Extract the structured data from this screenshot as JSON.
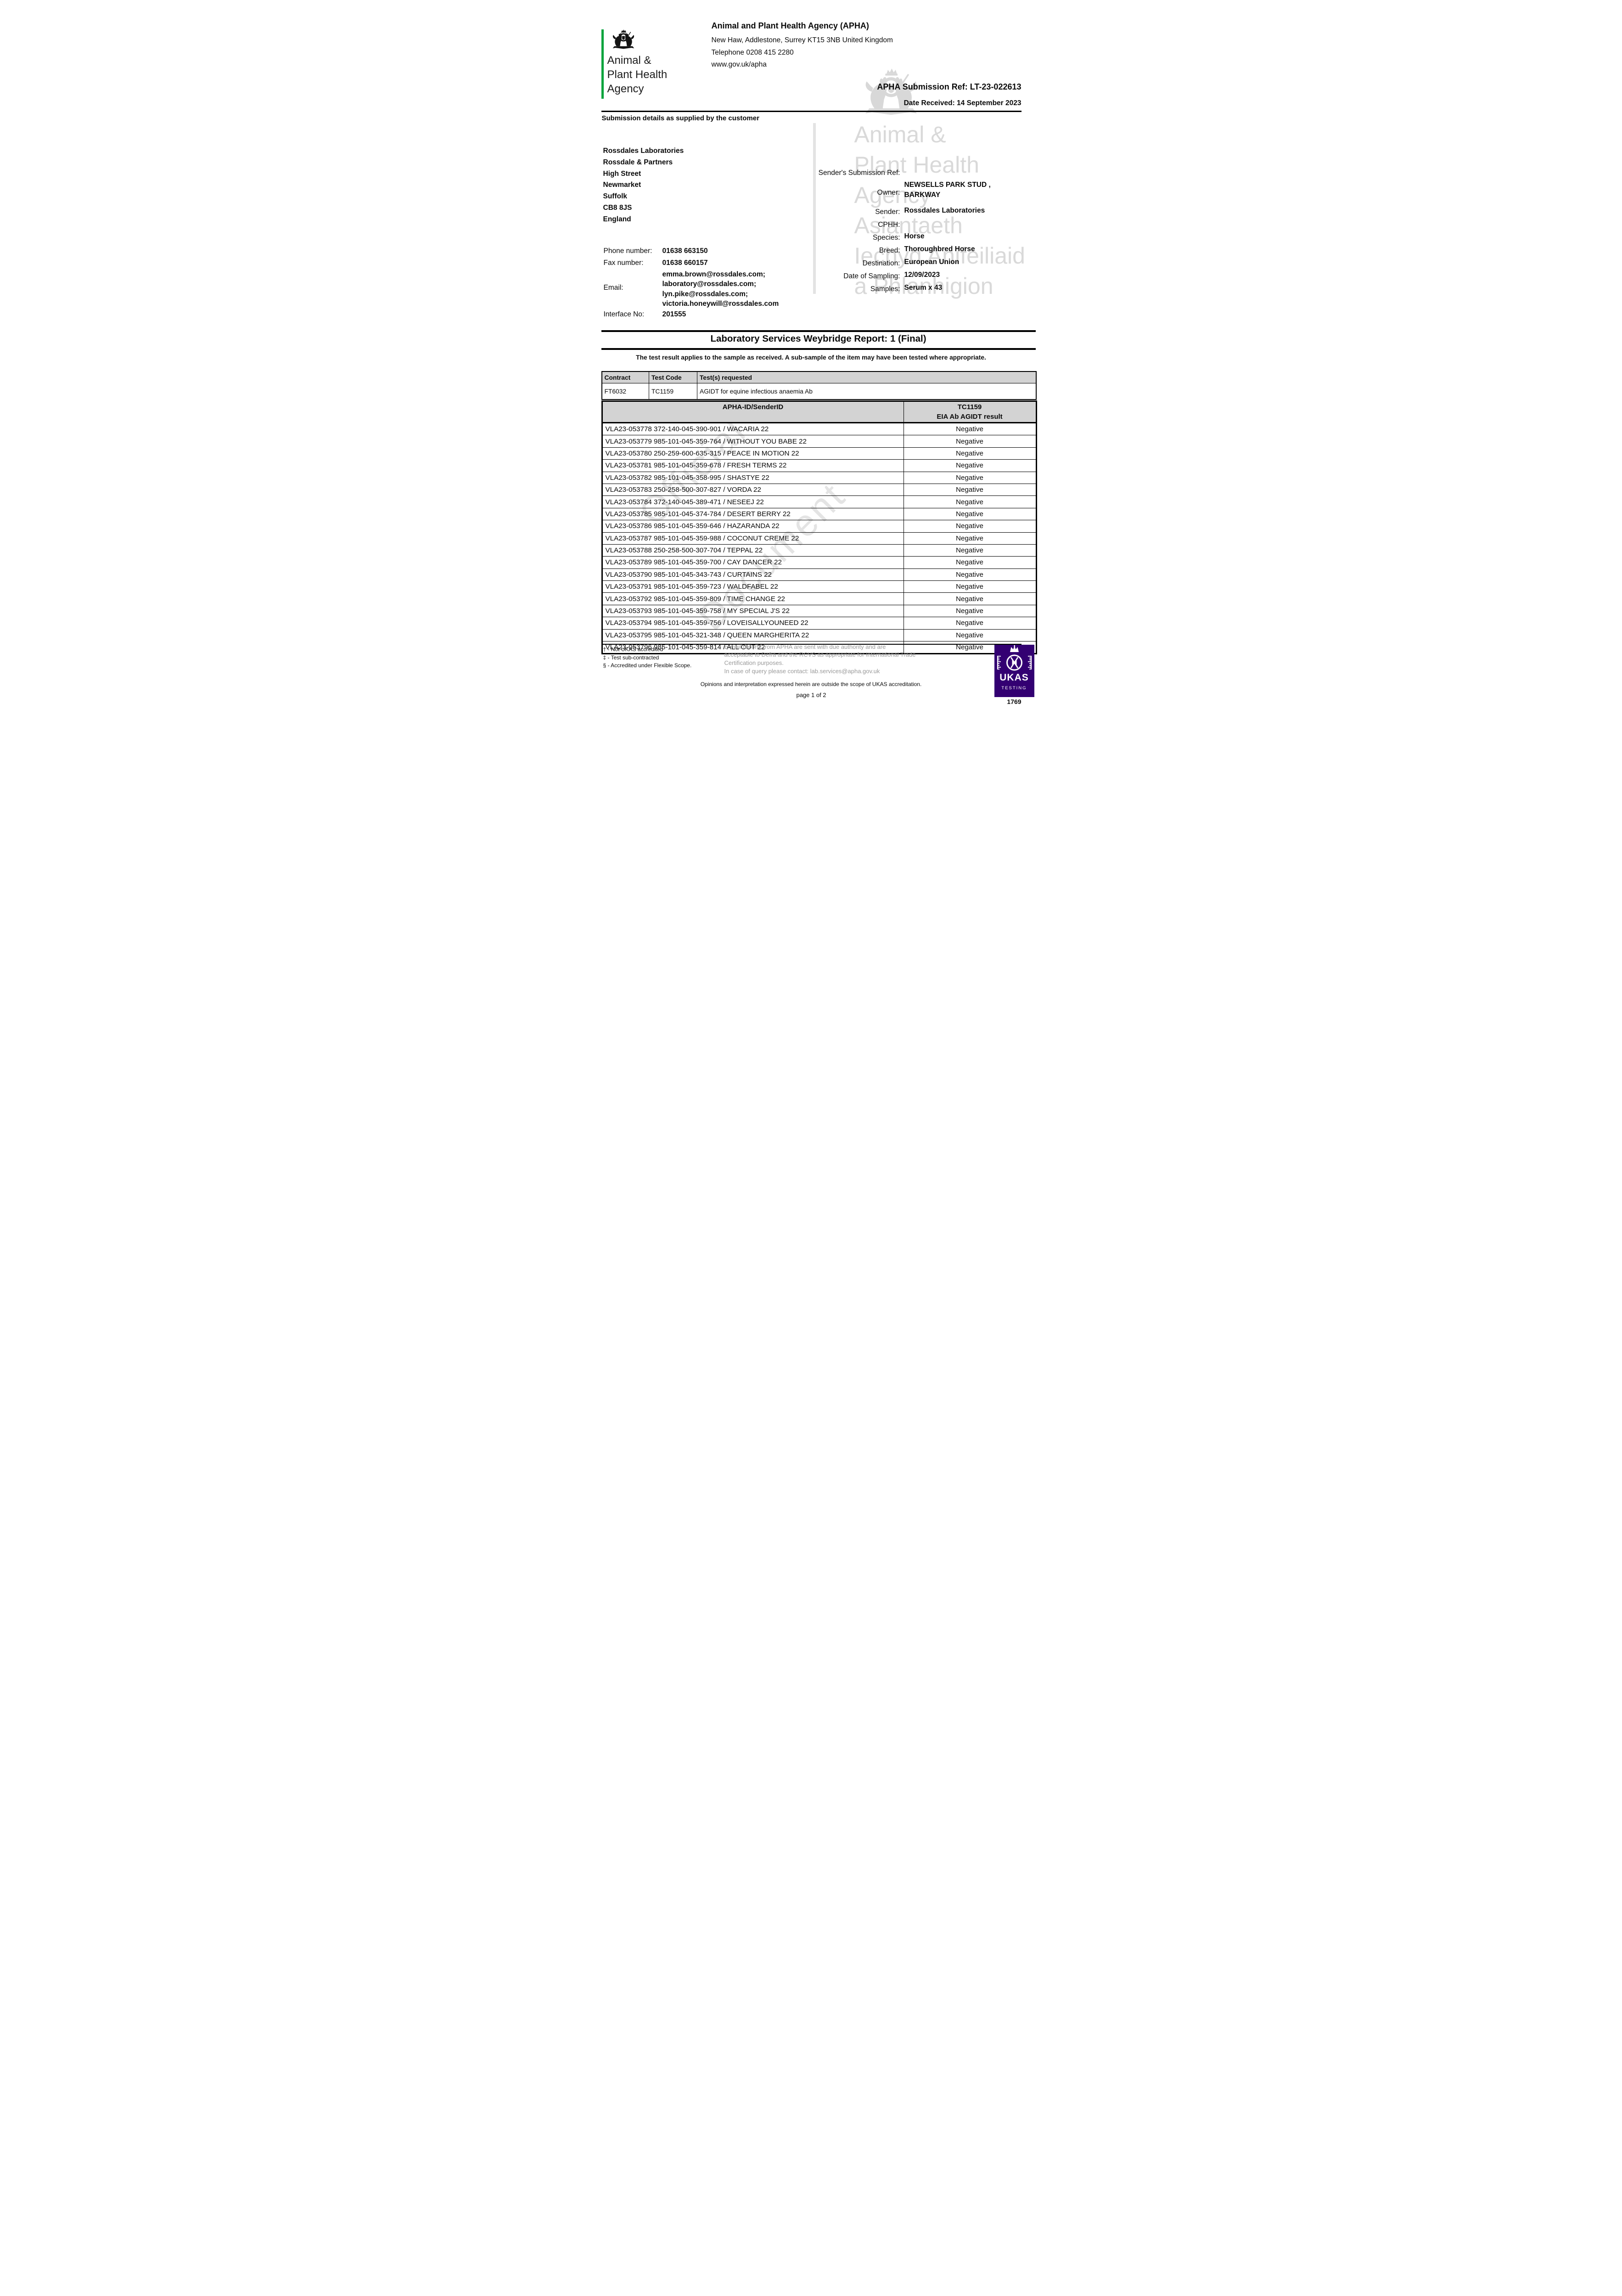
{
  "colors": {
    "accent_green": "#00a33b",
    "ukas_purple": "#330072",
    "table_header_gray": "#d3d3d3"
  },
  "logo": {
    "lines": [
      "Animal &",
      "Plant Health",
      "Agency"
    ],
    "crest_icon": "royal-coat-of-arms-icon"
  },
  "header": {
    "title": "Animal and Plant Health Agency (APHA)",
    "address": "New Haw, Addlestone, Surrey KT15 3NB United Kingdom",
    "telephone": "Telephone 0208 415 2280",
    "website": "www.gov.uk/apha",
    "submission_ref": "APHA Submission Ref: LT-23-022613",
    "date_received": "Date Received: 14 September 2023",
    "section_heading": "Submission details as supplied by the customer"
  },
  "customer": {
    "address_lines": [
      "Rossdales Laboratories",
      "Rossdale & Partners",
      "High Street",
      "Newmarket",
      "Suffolk",
      "CB8 8JS",
      "England"
    ],
    "phone_label": "Phone number:",
    "phone": "01638 663150",
    "fax_label": "Fax number:",
    "fax": "01638 660157",
    "email_label": "Email:",
    "email_lines": [
      "emma.brown@rossdales.com;",
      "laboratory@rossdales.com;",
      "lyn.pike@rossdales.com;",
      "victoria.honeywill@rossdales.com"
    ],
    "interface_label": "Interface No:",
    "interface_no": "201555"
  },
  "details": {
    "sender_ref_label": "Sender's Submission Ref:",
    "rows": [
      {
        "label": "Owner:",
        "value": "NEWSELLS PARK STUD , BARKWAY"
      },
      {
        "label": "Sender:",
        "value": "Rossdales Laboratories"
      },
      {
        "label": "CPHH:",
        "value": ""
      },
      {
        "label": "Species:",
        "value": "Horse"
      },
      {
        "label": "Breed:",
        "value": "Thoroughbred Horse"
      },
      {
        "label": "Destination:",
        "value": "European Union"
      },
      {
        "label": "Date of Sampling:",
        "value": "12/09/2023"
      },
      {
        "label": "Samples:",
        "value": "Serum x 43"
      }
    ]
  },
  "report": {
    "title": "Laboratory Services Weybridge Report: 1 (Final)",
    "note": "The test result applies to the sample as received. A sub-sample of the item may have been tested where appropriate.",
    "contract_table": {
      "headers": [
        "Contract",
        "Test Code",
        "Test(s) requested"
      ],
      "rows": [
        {
          "contract": "FT6032",
          "test_code": "TC1159",
          "tests_requested": "AGIDT for equine infectious anaemia Ab"
        }
      ]
    },
    "results_table": {
      "id_header": "APHA-ID/SenderID",
      "result_header_line1": "TC1159",
      "result_header_line2": "EIA Ab AGIDT result",
      "rows": [
        {
          "id": "VLA23-053778 372-140-045-390-901 / WACARIA 22",
          "result": "Negative"
        },
        {
          "id": "VLA23-053779 985-101-045-359-764 / WITHOUT YOU BABE 22",
          "result": "Negative"
        },
        {
          "id": "VLA23-053780 250-259-600-635-315 / PEACE IN MOTION 22",
          "result": "Negative"
        },
        {
          "id": "VLA23-053781 985-101-045-359-678 / FRESH TERMS 22",
          "result": "Negative"
        },
        {
          "id": "VLA23-053782 985-101-045-358-995 / SHASTYE 22",
          "result": "Negative"
        },
        {
          "id": "VLA23-053783 250-258-500-307-827 / VORDA 22",
          "result": "Negative"
        },
        {
          "id": "VLA23-053784 372-140-045-389-471 / NESEEJ 22",
          "result": "Negative"
        },
        {
          "id": "VLA23-053785 985-101-045-374-784 / DESERT BERRY 22",
          "result": "Negative"
        },
        {
          "id": "VLA23-053786 985-101-045-359-646 / HAZARANDA 22",
          "result": "Negative"
        },
        {
          "id": "VLA23-053787 985-101-045-359-988 / COCONUT CREME 22",
          "result": "Negative"
        },
        {
          "id": "VLA23-053788 250-258-500-307-704 / TEPPAL 22",
          "result": "Negative"
        },
        {
          "id": "VLA23-053789 985-101-045-359-700 / CAY DANCER 22",
          "result": "Negative"
        },
        {
          "id": "VLA23-053790 985-101-045-343-743 / CURTAINS 22",
          "result": "Negative"
        },
        {
          "id": "VLA23-053791 985-101-045-359-723 / WALDFABEL 22",
          "result": "Negative"
        },
        {
          "id": "VLA23-053792 985-101-045-359-809 / TIME CHANGE 22",
          "result": "Negative"
        },
        {
          "id": "VLA23-053793 985-101-045-359-758 / MY SPECIAL J'S 22",
          "result": "Negative"
        },
        {
          "id": "VLA23-053794 985-101-045-359-756 / LOVEISALLYOUNEED 22",
          "result": "Negative"
        },
        {
          "id": "VLA23-053795 985-101-045-321-348 / QUEEN MARGHERITA 22",
          "result": "Negative"
        },
        {
          "id": "VLA23-053796 985-101-045-359-814 / ALL OUT 22",
          "result": "Negative"
        }
      ]
    }
  },
  "watermarks": {
    "diag_line1": "Official",
    "diag_line2": "Document",
    "agency_lines": [
      "Animal &",
      "Plant Health",
      "Agency",
      "Asiantaeth",
      "Iechyd Anifeiliaid",
      "a Phlanhigion"
    ]
  },
  "footer": {
    "footnotes": [
      "† - Not UKAS accredited",
      "‡ - Test sub-contracted",
      "§ - Accredited under Flexible Scope."
    ],
    "email_note": "E-mail reports from APHA are sent with due authority and are acceptable to Defra and the RCVS as appropriate for International Trade Certification purposes.",
    "query_note": "In case of query please contact: lab.services@apha.gov.uk",
    "ukas_note": "Opinions and interpretation expressed herein are outside the scope of UKAS accreditation.",
    "page_note": "page 1 of 2",
    "ukas": {
      "word": "UKAS",
      "type": "TESTING",
      "number": "1769"
    }
  }
}
